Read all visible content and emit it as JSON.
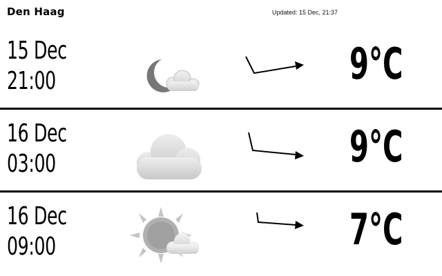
{
  "header": {
    "city": "Den Haag",
    "updated": "Updated: 15 Dec, 21:37"
  },
  "forecast": [
    {
      "date": "15 Dec",
      "time": "21:00",
      "icon": "moon-cloud-icon",
      "wind_icon": "wind-direction-arrow-icon",
      "temperature": "9°C"
    },
    {
      "date": "16 Dec",
      "time": "03:00",
      "icon": "cloud-icon",
      "wind_icon": "wind-direction-arrow-icon",
      "temperature": "9°C"
    },
    {
      "date": "16 Dec",
      "time": "09:00",
      "icon": "sun-cloud-icon",
      "wind_icon": "wind-direction-arrow-icon",
      "temperature": "7°C"
    }
  ],
  "colors": {
    "background": "#ffffff",
    "text": "#000000",
    "icon_grey": "#9a9a9a"
  }
}
